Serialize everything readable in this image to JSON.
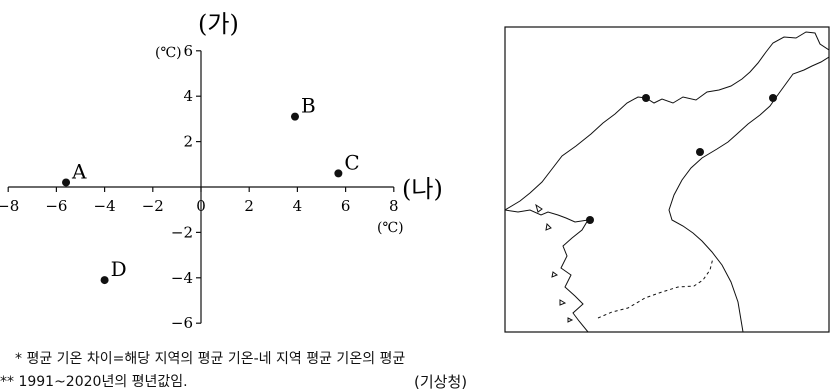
{
  "chart_data": {
    "type": "scatter",
    "title": "",
    "y_axis_label": "(가)",
    "y_axis_unit": "(℃)",
    "x_axis_label": "(나)",
    "x_axis_unit": "(℃)",
    "xlim": [
      -8,
      8
    ],
    "ylim": [
      -6,
      6
    ],
    "x_ticks": [
      -8,
      -6,
      -4,
      -2,
      0,
      2,
      4,
      6,
      8
    ],
    "y_ticks": [
      -6,
      -4,
      -2,
      2,
      4,
      6
    ],
    "grid": false,
    "legend": "none",
    "points": [
      {
        "label": "A",
        "x": -5.6,
        "y": 0.2
      },
      {
        "label": "B",
        "x": 3.9,
        "y": 3.1
      },
      {
        "label": "C",
        "x": 5.7,
        "y": 0.6
      },
      {
        "label": "D",
        "x": -4.0,
        "y": -4.1
      }
    ]
  },
  "map": {
    "description_icon": "north-korea-map-icon",
    "marker_count": 4
  },
  "notes": {
    "note1": "* 평균 기온 차이=해당 지역의 평균 기온-네 지역 평균 기온의 평균",
    "note2": "** 1991~2020년의 평년값임.",
    "source": "(기상청)"
  },
  "colors": {
    "ink": "#111111",
    "paper": "#ffffff"
  }
}
